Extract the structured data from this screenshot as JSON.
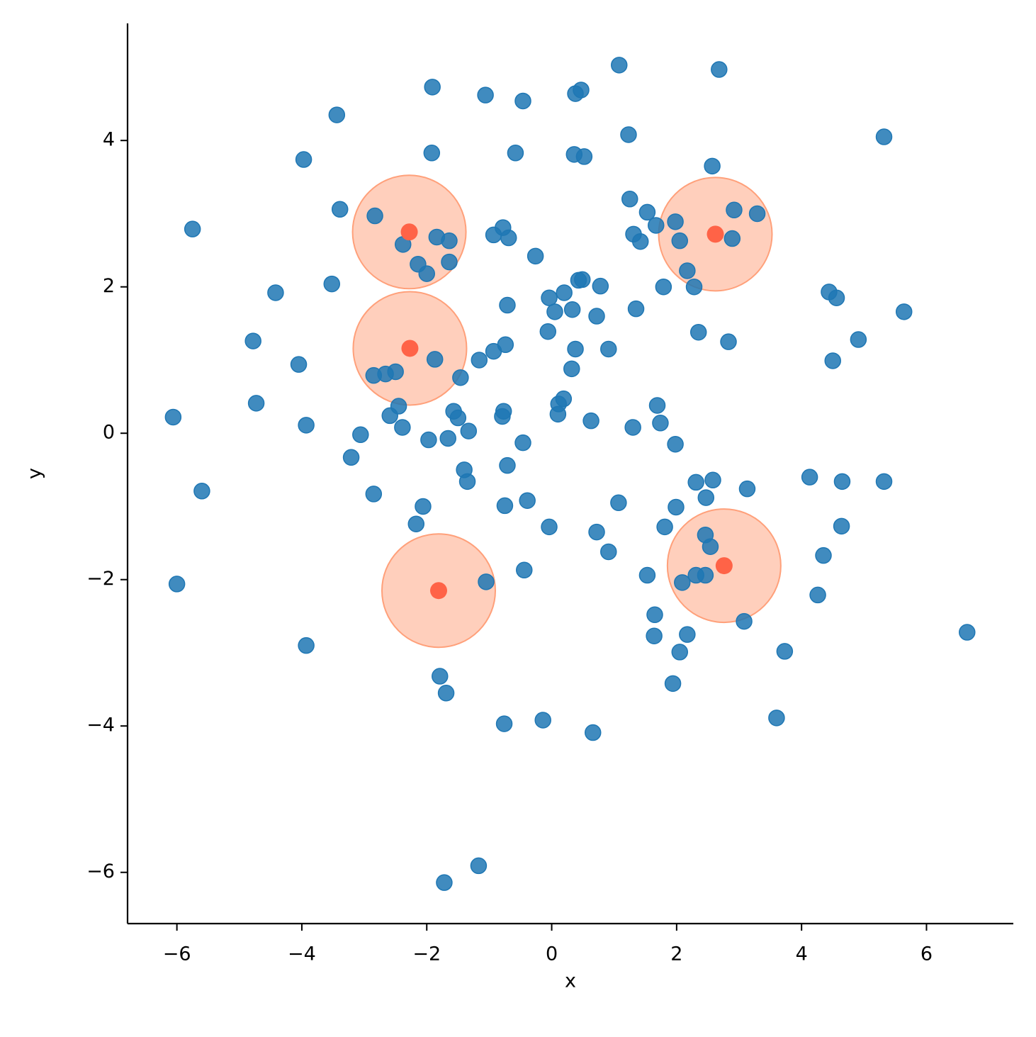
{
  "chart_data": {
    "type": "scatter",
    "x_label": "x",
    "y_label": "y",
    "xlim": [
      -6.79,
      7.39
    ],
    "ylim": [
      -6.7,
      5.6
    ],
    "xticks": [
      {
        "value": -6,
        "label": "−6"
      },
      {
        "value": -4,
        "label": "−4"
      },
      {
        "value": -2,
        "label": "−2"
      },
      0,
      2,
      4,
      6
    ],
    "yticks": [
      {
        "value": -6,
        "label": "−6"
      },
      {
        "value": -4,
        "label": "−4"
      },
      {
        "value": -2,
        "label": "−2"
      },
      0,
      2,
      4
    ],
    "series": [
      {
        "color": "#1f77b4",
        "x": [
          1.08,
          2.68,
          -1.91,
          -1.06,
          -0.46,
          0.38,
          0.47,
          -3.44,
          1.23,
          5.32,
          -3.97,
          -1.92,
          -0.58,
          0.36,
          0.52,
          2.57,
          -5.75,
          -3.39,
          -2.83,
          1.25,
          1.53,
          1.98,
          2.92,
          3.29,
          1.67,
          -0.78,
          -0.93,
          -0.69,
          -1.84,
          -1.64,
          -2.38,
          1.31,
          1.42,
          2.05,
          2.89,
          -0.26,
          -2.14,
          -2.0,
          -1.64,
          2.17,
          0.43,
          0.49,
          0.78,
          1.79,
          2.28,
          -3.52,
          -4.42,
          4.44,
          4.56,
          5.64,
          -0.04,
          0.2,
          -0.71,
          0.33,
          0.05,
          0.72,
          1.35,
          2.35,
          -0.06,
          -4.78,
          2.83,
          4.91,
          -0.74,
          -0.93,
          0.38,
          0.91,
          -1.87,
          -1.16,
          4.5,
          -4.05,
          0.32,
          -2.85,
          -2.66,
          -2.5,
          -1.46,
          0.19,
          0.11,
          0.1,
          -4.73,
          -2.45,
          1.69,
          -1.57,
          -0.77,
          -0.79,
          -1.5,
          -2.59,
          -6.06,
          -3.93,
          -2.39,
          0.63,
          1.74,
          1.3,
          -1.33,
          -3.06,
          -1.97,
          -1.66,
          -0.46,
          1.98,
          -3.21,
          -1.4,
          -1.35,
          -0.71,
          -5.6,
          4.13,
          2.31,
          2.58,
          4.65,
          5.32,
          3.13,
          -2.85,
          2.47,
          -0.39,
          1.07,
          -2.06,
          -0.75,
          1.99,
          -2.17,
          4.64,
          1.81,
          -0.04,
          0.72,
          2.46,
          2.54,
          0.91,
          4.35,
          -0.44,
          1.53,
          2.31,
          2.46,
          -1.05,
          2.09,
          -6.0,
          4.26,
          3.08,
          1.65,
          1.64,
          2.17,
          6.65,
          -3.93,
          2.05,
          3.73,
          -1.79,
          -1.69,
          1.94,
          3.6,
          -0.76,
          -0.14,
          0.66,
          -1.17,
          -1.72
        ],
        "y": [
          5.03,
          4.97,
          4.73,
          4.62,
          4.54,
          4.64,
          4.69,
          4.35,
          4.08,
          4.05,
          3.74,
          3.83,
          3.83,
          3.81,
          3.78,
          3.65,
          2.79,
          3.06,
          2.97,
          3.2,
          3.02,
          2.89,
          3.05,
          3.0,
          2.84,
          2.81,
          2.71,
          2.67,
          2.68,
          2.63,
          2.58,
          2.72,
          2.62,
          2.63,
          2.66,
          2.42,
          2.31,
          2.18,
          2.34,
          2.22,
          2.09,
          2.1,
          2.01,
          2.0,
          2.0,
          2.04,
          1.92,
          1.93,
          1.85,
          1.66,
          1.85,
          1.92,
          1.75,
          1.69,
          1.66,
          1.6,
          1.7,
          1.38,
          1.39,
          1.26,
          1.25,
          1.28,
          1.21,
          1.12,
          1.15,
          1.15,
          1.01,
          1.0,
          0.99,
          0.94,
          0.88,
          0.79,
          0.81,
          0.84,
          0.76,
          0.47,
          0.4,
          0.26,
          0.41,
          0.37,
          0.38,
          0.3,
          0.3,
          0.23,
          0.21,
          0.24,
          0.22,
          0.11,
          0.08,
          0.17,
          0.14,
          0.08,
          0.03,
          -0.02,
          -0.09,
          -0.07,
          -0.13,
          -0.15,
          -0.33,
          -0.5,
          -0.66,
          -0.44,
          -0.79,
          -0.6,
          -0.67,
          -0.64,
          -0.66,
          -0.66,
          -0.76,
          -0.83,
          -0.88,
          -0.92,
          -0.95,
          -1.0,
          -0.99,
          -1.01,
          -1.24,
          -1.27,
          -1.28,
          -1.28,
          -1.35,
          -1.39,
          -1.55,
          -1.62,
          -1.67,
          -1.87,
          -1.94,
          -1.94,
          -1.94,
          -2.03,
          -2.04,
          -2.06,
          -2.21,
          -2.57,
          -2.48,
          -2.77,
          -2.75,
          -2.72,
          -2.9,
          -2.99,
          -2.98,
          -3.32,
          -3.55,
          -3.42,
          -3.89,
          -3.97,
          -3.92,
          -4.09,
          -5.91,
          -6.14
        ]
      },
      {
        "color": "#ff6347",
        "halo_color": "#ffa07a",
        "x": [
          -2.28,
          2.62,
          -2.27,
          2.76,
          -1.81
        ],
        "y": [
          2.75,
          2.72,
          1.16,
          -1.81,
          -2.15
        ]
      }
    ]
  }
}
